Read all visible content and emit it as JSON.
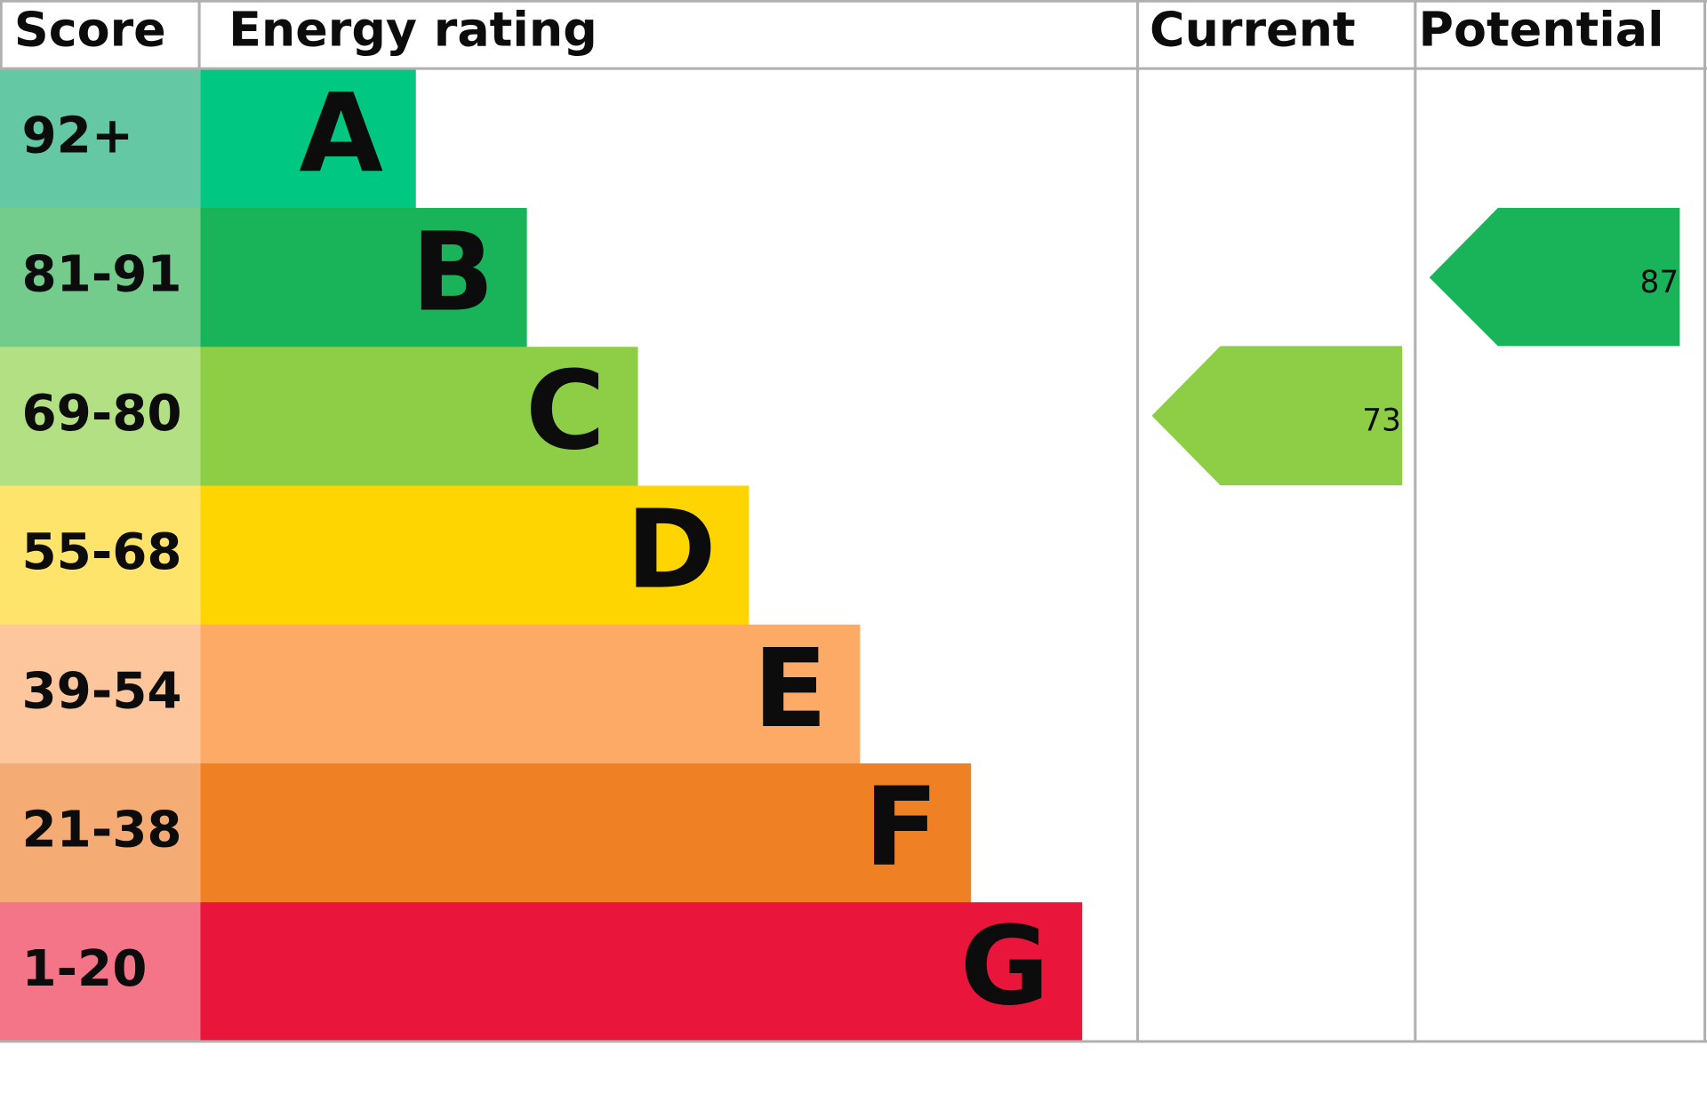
{
  "header": {
    "score": "Score",
    "rating": "Energy rating",
    "current": "Current",
    "potential": "Potential"
  },
  "bands": [
    {
      "score": "92+",
      "letter": "A",
      "color": "#00c781",
      "score_color": "#64c8a4"
    },
    {
      "score": "81-91",
      "letter": "B",
      "color": "#19b459",
      "score_color": "#74cc8c"
    },
    {
      "score": "69-80",
      "letter": "C",
      "color": "#8dce46",
      "score_color": "#b4e084"
    },
    {
      "score": "55-68",
      "letter": "D",
      "color": "#ffd500",
      "score_color": "#ffe46c"
    },
    {
      "score": "39-54",
      "letter": "E",
      "color": "#fcaa65",
      "score_color": "#fec69c"
    },
    {
      "score": "21-38",
      "letter": "F",
      "color": "#ef8023",
      "score_color": "#f4ac74"
    },
    {
      "score": "1-20",
      "letter": "G",
      "color": "#e9153b",
      "score_color": "#f47488"
    }
  ],
  "current": {
    "value": "73",
    "color": "#8dce46"
  },
  "potential": {
    "value": "87",
    "color": "#19b459"
  }
}
